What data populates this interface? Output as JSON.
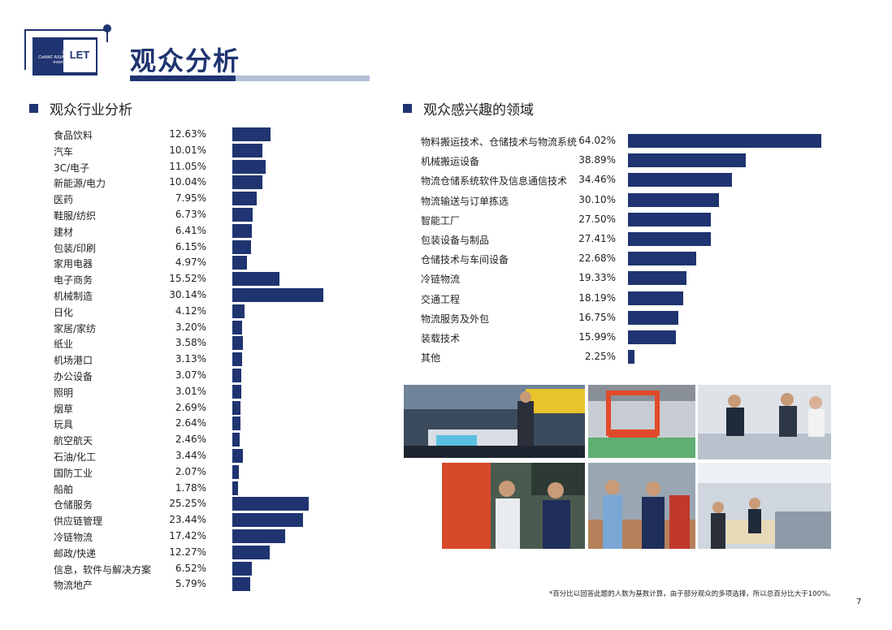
{
  "logo": {
    "text": "LET",
    "small_text": [
      "2",
      "CeMAT ASIA",
      "event"
    ]
  },
  "title": "观众分析",
  "industry": {
    "heading": "观众行业分析",
    "chart_data": {
      "type": "bar",
      "title": "观众行业分析",
      "categories": [
        "食品饮料",
        "汽车",
        "3C/电子",
        "新能源/电力",
        "医药",
        "鞋服/纺织",
        "建材",
        "包装/印刷",
        "家用电器",
        "电子商务",
        "机械制造",
        "日化",
        "家居/家纺",
        "纸业",
        "机场港口",
        "办公设备",
        "照明",
        "烟草",
        "玩具",
        "航空航天",
        "石油/化工",
        "国防工业",
        "船舶",
        "仓储服务",
        "供应链管理",
        "冷链物流",
        "邮政/快递",
        "信息，软件与解决方案",
        "物流地产"
      ],
      "values": [
        12.63,
        10.01,
        11.05,
        10.04,
        7.95,
        6.73,
        6.41,
        6.15,
        4.97,
        15.52,
        30.14,
        4.12,
        3.2,
        3.58,
        3.13,
        3.07,
        3.01,
        2.69,
        2.64,
        2.46,
        3.44,
        2.07,
        1.78,
        25.25,
        23.44,
        17.42,
        12.27,
        6.52,
        5.79
      ],
      "labels": [
        "12.63%",
        "10.01%",
        "11.05%",
        "10.04%",
        "7.95%",
        "6.73%",
        "6.41%",
        "6.15%",
        "4.97%",
        "15.52%",
        "30.14%",
        "4.12%",
        "3.20%",
        "3.58%",
        "3.13%",
        "3.07%",
        "3.01%",
        "2.69%",
        "2.64%",
        "2.46%",
        "3.44%",
        "2.07%",
        "1.78%",
        "25.25%",
        "23.44%",
        "17.42%",
        "12.27%",
        "6.52%",
        "5.79%"
      ],
      "xlim": [
        0,
        30.14
      ]
    }
  },
  "interest": {
    "heading": "观众感兴趣的领域",
    "chart_data": {
      "type": "bar",
      "title": "观众感兴趣的领域",
      "categories": [
        "物料搬运技术、仓储技术与物流系统",
        "机械搬运设备",
        "物流仓储系统软件及信息通信技术",
        "物流输送与订单拣选",
        "智能工厂",
        "包装设备与制品",
        "仓储技术与车间设备",
        "冷链物流",
        "交通工程",
        "物流服务及外包",
        "装载技术",
        "其他"
      ],
      "values": [
        64.02,
        38.89,
        34.46,
        30.1,
        27.5,
        27.41,
        22.68,
        19.33,
        18.19,
        16.75,
        15.99,
        2.25
      ],
      "labels": [
        "64.02%",
        "38.89%",
        "34.46%",
        "30.10%",
        "27.50%",
        "27.41%",
        "22.68%",
        "19.33%",
        "18.19%",
        "16.75%",
        "15.99%",
        "2.25%"
      ],
      "xlim": [
        0,
        64.02
      ]
    }
  },
  "footnote": "*百分比以回答此题的人数为基数计算，由于部分观众的多项选择，所以总百分比大于100%。",
  "page_number": "7",
  "colors": {
    "brand": "#1f3470",
    "light": "#b4bfd8"
  }
}
